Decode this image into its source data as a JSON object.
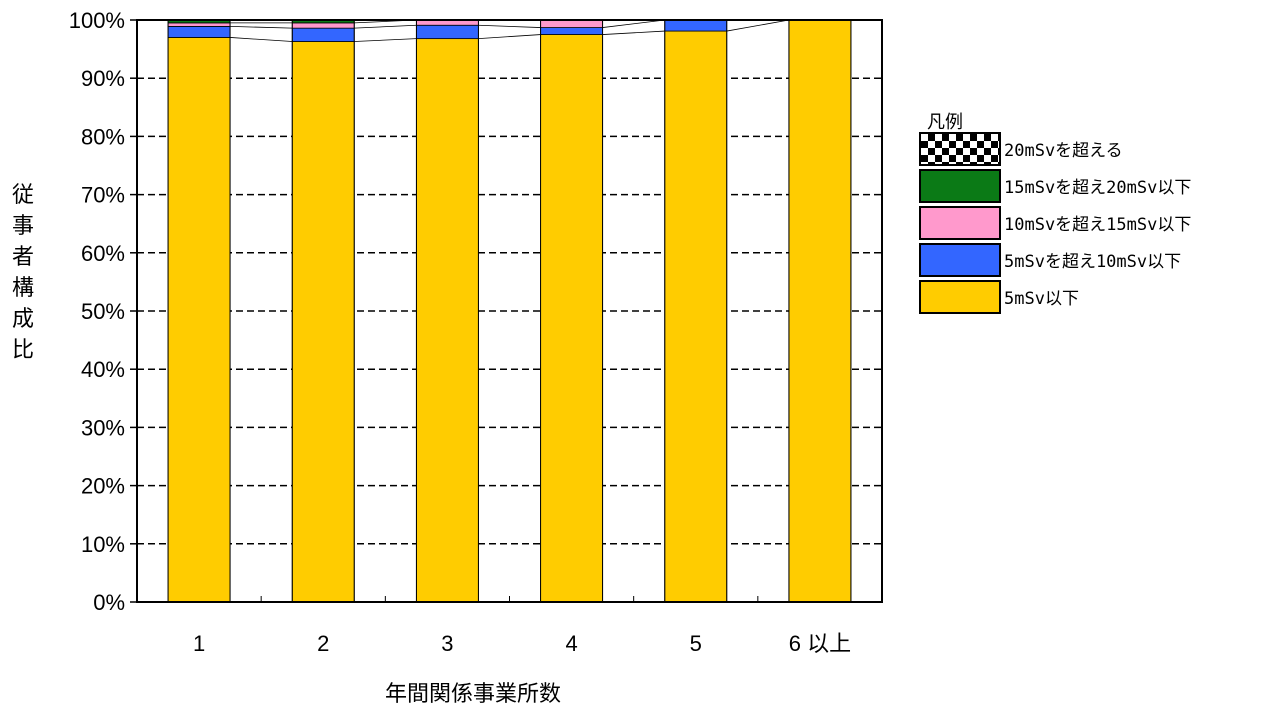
{
  "chart_data": {
    "type": "bar",
    "stacked": true,
    "xlabel": "年間関係事業所数",
    "ylabel": "従事者構成比",
    "ylim": [
      0,
      100
    ],
    "yticks": [
      "0%",
      "10%",
      "20%",
      "30%",
      "40%",
      "50%",
      "60%",
      "70%",
      "80%",
      "90%",
      "100%"
    ],
    "categories": [
      "1",
      "2",
      "3",
      "4",
      "5",
      "6 以上"
    ],
    "grid": true,
    "legend_position": "right",
    "legend_title": "凡例",
    "legend": [
      {
        "name": "20mSvを超える",
        "color": "checker"
      },
      {
        "name": "15mSvを超え20mSv以下",
        "color": "#0b7a16"
      },
      {
        "name": "10mSvを超え15mSv以下",
        "color": "#ff99cc"
      },
      {
        "name": "5mSvを超え10mSv以下",
        "color": "#3366ff"
      },
      {
        "name": "5mSv以下",
        "color": "#ffcc00"
      }
    ],
    "series": [
      {
        "name": "5mSv以下",
        "color": "#ffcc00",
        "values": [
          97.0,
          96.3,
          96.8,
          97.5,
          98.1,
          100
        ]
      },
      {
        "name": "5mSvを超え10mSv以下",
        "color": "#3366ff",
        "values": [
          1.9,
          2.3,
          2.3,
          1.2,
          1.9,
          0
        ]
      },
      {
        "name": "10mSvを超え15mSv以下",
        "color": "#ff99cc",
        "values": [
          0.6,
          0.9,
          0.9,
          1.2,
          0,
          0
        ]
      },
      {
        "name": "15mSvを超え20mSv以下",
        "color": "#0b7a16",
        "values": [
          0.5,
          0.5,
          0,
          0.1,
          0,
          0
        ]
      }
    ]
  }
}
